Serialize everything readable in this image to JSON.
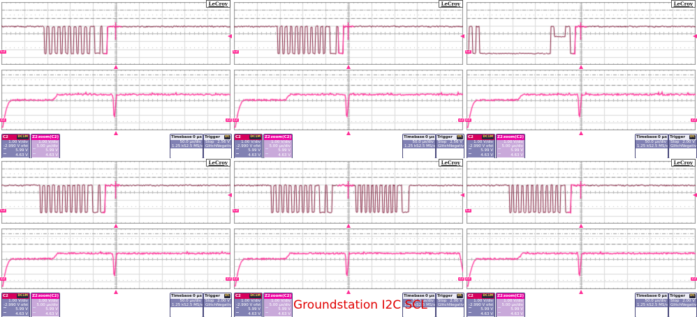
{
  "logo": "LeCroy",
  "caption": {
    "text": "Groundstation I2C SCL",
    "color": "#e00000"
  },
  "colors": {
    "trace_dark": "#7d1535",
    "trace_pink": "#ff2d96",
    "grid_line": "#d9d9d9",
    "grid_center": "#b3b3b3",
    "grid_border": "#8f8f8f"
  },
  "markers": {
    "c2": "C2",
    "z2": "Z2",
    "z2_right": "Z2"
  },
  "panels": [
    {
      "id": "top-left",
      "c2_box": {
        "ch": "C2",
        "badge": "DC1M",
        "vdiv": "1.00 V/div",
        "offset": "-2.990 V ofst",
        "v1": "5.99 V",
        "v2": "4.63 V"
      },
      "z2_box": {
        "ch": "Z2",
        "title": "zoom(C2)",
        "vdiv": "1.00 V/div",
        "tdiv": "5.00 µs/div",
        "v1": "5.99 V",
        "v2": "4.63 V"
      },
      "timebase_box": {
        "label": "Timebase",
        "pos": "0 µs",
        "tdiv": "50.0 µs/div",
        "samples": "1.25 kS",
        "rate": "2.5 MS/s"
      },
      "trigger_box": {
        "label": "Trigger",
        "badge": "DC",
        "mode": "Stop",
        "level": "2.56 V",
        "type": "Glitch",
        "slope": "Negative"
      },
      "wave": {
        "pink_from": 0.447,
        "pink_to": 0.524,
        "glitch_x": 0.4985,
        "edge_drop": false,
        "segments": [
          [
            "high",
            0,
            0.186
          ],
          [
            "clock",
            0.186,
            0.397,
            9
          ],
          [
            "high",
            0.397,
            0.407
          ],
          [
            "low",
            0.407,
            0.431
          ],
          [
            "high",
            0.431,
            0.442
          ],
          [
            "low",
            0.442,
            0.463
          ],
          [
            "high",
            0.463,
            1
          ]
        ]
      }
    },
    {
      "id": "top-center",
      "c2_box": {
        "ch": "C2",
        "badge": "DC1M",
        "vdiv": "1.00 V/div",
        "offset": "-2.990 V ofst",
        "v1": "5.99 V",
        "v2": "4.63 V"
      },
      "z2_box": {
        "ch": "Z2",
        "title": "zoom(C2)",
        "vdiv": "1.00 V/div",
        "tdiv": "5.00 µs/div",
        "v1": "5.99 V",
        "v2": "4.63 V"
      },
      "timebase_box": {
        "label": "Timebase",
        "pos": "0 µs",
        "tdiv": "50.0 µs/div",
        "samples": "1.25 kS",
        "rate": "2.5 MS/s"
      },
      "trigger_box": {
        "label": "Trigger",
        "badge": "DC",
        "mode": "Stop",
        "level": "2.56 V",
        "type": "Glitch",
        "slope": "Negative"
      },
      "wave": {
        "pink_from": 0.455,
        "pink_to": 0.525,
        "glitch_x": 0.4985,
        "edge_drop": false,
        "segments": [
          [
            "high",
            0,
            0.19
          ],
          [
            "clock",
            0.19,
            0.41,
            10
          ],
          [
            "high",
            0.41,
            0.42
          ],
          [
            "low",
            0.42,
            0.447
          ],
          [
            "high",
            0.447,
            0.456
          ],
          [
            "low",
            0.456,
            0.477
          ],
          [
            "high",
            0.477,
            1
          ]
        ]
      }
    },
    {
      "id": "top-right",
      "c2_box": {
        "ch": "C2",
        "badge": "DC1M",
        "vdiv": "1.00 V/div",
        "offset": "-2.990 V ofst",
        "v1": "5.99 V",
        "v2": "4.63 V"
      },
      "z2_box": {
        "ch": "Z2",
        "title": "zoom(C2)",
        "vdiv": "1.00 V/div",
        "tdiv": "5.00 µs/div",
        "v1": "5.99 V",
        "v2": "4.63 V"
      },
      "timebase_box": {
        "label": "Timebase",
        "pos": "0 µs",
        "tdiv": "50.0 µs/div",
        "samples": "1.25 kS",
        "rate": "2.5 MS/s"
      },
      "trigger_box": {
        "label": "Trigger",
        "badge": "DC",
        "mode": "Stop",
        "level": "2.00 V",
        "type": "Glitch",
        "slope": "Negative"
      },
      "wave": {
        "pink_from": 0.462,
        "pink_to": 0.525,
        "glitch_x": 0.4985,
        "edge_drop": false,
        "segments": [
          [
            "low",
            0,
            0.01
          ],
          [
            "high",
            0.01,
            0.026
          ],
          [
            "low",
            0.026,
            0.041
          ],
          [
            "high",
            0.041,
            0.056
          ],
          [
            "low",
            0.056,
            0.368
          ],
          [
            "high",
            0.368,
            0.384
          ],
          [
            "mid",
            0.384,
            0.432
          ],
          [
            "high",
            0.432,
            0.452
          ],
          [
            "low",
            0.452,
            0.474
          ],
          [
            "high",
            0.474,
            1
          ]
        ]
      }
    },
    {
      "id": "bottom-left",
      "c2_box": {
        "ch": "C2",
        "badge": "DC1M",
        "vdiv": "1.00 V/div",
        "offset": "-2.990 V ofst",
        "v1": "5.99 V",
        "v2": "4.63 V"
      },
      "z2_box": {
        "ch": "Z2",
        "title": "zoom(C2)",
        "vdiv": "1.00 V/div",
        "tdiv": "5.00 µs/div",
        "v1": "5.99 V",
        "v2": "4.63 V"
      },
      "timebase_box": {
        "label": "Timebase",
        "pos": "0 µs",
        "tdiv": "50.0 µs/div",
        "samples": "1.25 kS",
        "rate": "2.5 MS/s"
      },
      "trigger_box": {
        "label": "Trigger",
        "badge": "DC",
        "mode": "Stop",
        "level": "2.00 V",
        "type": "Glitch",
        "slope": "Negative"
      },
      "wave": {
        "pink_from": 0.44,
        "pink_to": 0.52,
        "glitch_x": 0.4985,
        "edge_drop": false,
        "segments": [
          [
            "high",
            0,
            0.168
          ],
          [
            "clock",
            0.168,
            0.387,
            10
          ],
          [
            "high",
            0.387,
            0.397
          ],
          [
            "low",
            0.397,
            0.421
          ],
          [
            "high",
            0.421,
            0.431
          ],
          [
            "low",
            0.431,
            0.453
          ],
          [
            "high",
            0.453,
            1
          ]
        ]
      }
    },
    {
      "id": "bottom-center",
      "c2_box": {
        "ch": "C2",
        "badge": "DC1M",
        "vdiv": "1.00 V/div",
        "offset": "-2.990 V ofst",
        "v1": "5.99 V",
        "v2": "4.63 V"
      },
      "z2_box": {
        "ch": "Z2",
        "title": "zoom(C2)",
        "vdiv": "1.00 V/div",
        "tdiv": "5.00 µs/div",
        "v1": "5.99 V",
        "v2": "4.63 V"
      },
      "timebase_box": {
        "label": "Timebase",
        "pos": "0 µs",
        "tdiv": "50.0 µs/div",
        "samples": "1.25 kS",
        "rate": "2.5 MS/s"
      },
      "trigger_box": {
        "label": "Trigger",
        "badge": "DC",
        "mode": "Stop",
        "level": "2.00 V",
        "type": "Glitch",
        "slope": "Negative"
      },
      "wave": {
        "pink_from": 0.452,
        "pink_to": 0.522,
        "glitch_x": 0.4985,
        "edge_drop": true,
        "segments": [
          [
            "high",
            0,
            0.163
          ],
          [
            "clock",
            0.163,
            0.363,
            9
          ],
          [
            "high",
            0.363,
            0.373
          ],
          [
            "low",
            0.373,
            0.398
          ],
          [
            "high",
            0.398,
            0.408
          ],
          [
            "low",
            0.408,
            0.428
          ],
          [
            "high",
            0.428,
            0.533
          ],
          [
            "clock",
            0.533,
            0.723,
            10
          ],
          [
            "high",
            0.723,
            0.733
          ],
          [
            "low",
            0.733,
            0.763
          ],
          [
            "high",
            0.763,
            1
          ]
        ]
      }
    },
    {
      "id": "bottom-right",
      "c2_box": {
        "ch": "C2",
        "badge": "DC1M",
        "vdiv": "1.00 V/div",
        "offset": "-2.990 V ofst",
        "v1": "5.99 V",
        "v2": "4.63 V"
      },
      "z2_box": {
        "ch": "Z2",
        "title": "zoom(C2)",
        "vdiv": "1.00 V/div",
        "tdiv": "5.00 µs/div",
        "v1": "5.99 V",
        "v2": "4.63 V"
      },
      "timebase_box": {
        "label": "Timebase",
        "pos": "0 µs",
        "tdiv": "50.0 µs/div",
        "samples": "1.25 kS",
        "rate": "2.5 MS/s"
      },
      "trigger_box": {
        "label": "Trigger",
        "badge": "DC",
        "mode": "Stop",
        "level": "2.00 V",
        "type": "Glitch",
        "slope": "Negative"
      },
      "wave": {
        "pink_from": 0.442,
        "pink_to": 0.52,
        "glitch_x": 0.4985,
        "edge_drop": false,
        "segments": [
          [
            "high",
            0,
            0.186
          ],
          [
            "clock",
            0.186,
            0.42,
            11
          ],
          [
            "high",
            0.42,
            0.43
          ],
          [
            "low",
            0.43,
            0.457
          ],
          [
            "high",
            0.457,
            1
          ]
        ]
      }
    }
  ]
}
